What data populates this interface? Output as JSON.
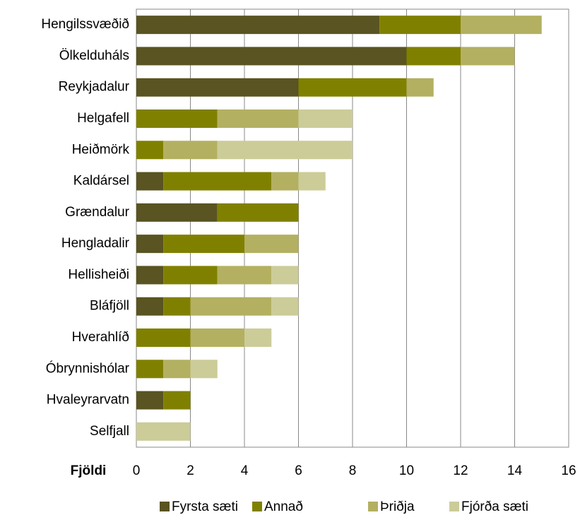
{
  "chart_data": {
    "type": "stacked_barh",
    "xlabel": "Fjöldi",
    "categories": [
      "Hengilssvæðið",
      "Ölkelduháls",
      "Reykjadalur",
      "Helgafell",
      "Heiðmörk",
      "Kaldársel",
      "Grændalur",
      "Hengladalir",
      "Hellisheiði",
      "Bláfjöll",
      "Hverahlíð",
      "Óbrynnishólar",
      "Hvaleyrarvatn",
      "Selfjall"
    ],
    "series": [
      {
        "name": "Fyrsta sæti",
        "color": "#595421",
        "values": [
          9,
          10,
          6,
          0,
          0,
          1,
          3,
          1,
          1,
          1,
          0,
          0,
          1,
          0
        ]
      },
      {
        "name": "Annað",
        "color": "#808000",
        "values": [
          3,
          2,
          4,
          3,
          1,
          4,
          3,
          3,
          2,
          1,
          2,
          1,
          1,
          0
        ]
      },
      {
        "name": "Þriðja",
        "color": "#b3b061",
        "values": [
          3,
          2,
          1,
          3,
          2,
          1,
          0,
          2,
          2,
          3,
          2,
          1,
          0,
          0
        ]
      },
      {
        "name": "Fjórða sæti",
        "color": "#cccc99",
        "values": [
          0,
          0,
          0,
          2,
          5,
          1,
          0,
          0,
          1,
          1,
          1,
          1,
          0,
          2
        ]
      }
    ],
    "xlim": [
      0,
      16
    ],
    "xticks": [
      0,
      2,
      4,
      6,
      8,
      10,
      12,
      14,
      16
    ],
    "grid": true,
    "legend": "bottom"
  }
}
